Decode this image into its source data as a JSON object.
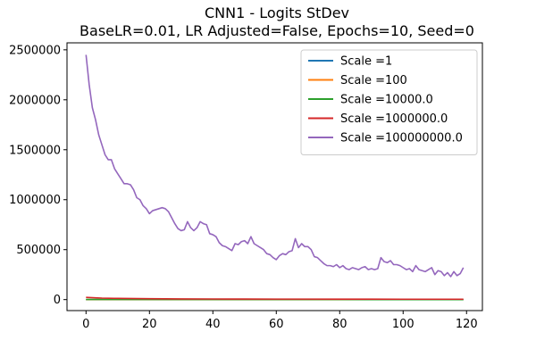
{
  "chart_data": {
    "type": "line",
    "title": "CNN1 - Logits StDev",
    "subtitle": "BaseLR=0.01, LR Adjusted=False, Epochs=10, Seed=0",
    "xlabel": "",
    "ylabel": "",
    "xlim": [
      -6,
      125
    ],
    "ylim": [
      -110000,
      2570000
    ],
    "xticks": [
      0,
      20,
      40,
      60,
      80,
      100,
      120
    ],
    "yticks": [
      0,
      500000,
      1000000,
      1500000,
      2000000,
      2500000
    ],
    "grid": false,
    "legend": "top-right",
    "series": [
      {
        "name": "Scale =1",
        "color": "#1f77b4",
        "x": [
          0,
          119
        ],
        "y": [
          0,
          0
        ]
      },
      {
        "name": "Scale =100",
        "color": "#ff7f0e",
        "x": [
          0,
          119
        ],
        "y": [
          10,
          10
        ]
      },
      {
        "name": "Scale =10000.0",
        "color": "#2ca02c",
        "x": [
          0,
          10,
          30,
          60,
          90,
          119
        ],
        "y": [
          1500,
          900,
          700,
          500,
          400,
          400
        ]
      },
      {
        "name": "Scale =1000000.0",
        "color": "#d62728",
        "x": [
          0,
          5,
          10,
          20,
          30,
          40,
          50,
          60,
          70,
          80,
          90,
          100,
          110,
          119
        ],
        "y": [
          22000,
          15000,
          12000,
          9000,
          7000,
          6000,
          5500,
          5000,
          5000,
          4500,
          4500,
          4000,
          4000,
          4000
        ]
      },
      {
        "name": "Scale =100000000.0",
        "color": "#9467bd",
        "x": [
          0,
          1,
          2,
          3,
          4,
          5,
          6,
          7,
          8,
          9,
          10,
          11,
          12,
          13,
          14,
          15,
          16,
          17,
          18,
          19,
          20,
          21,
          22,
          23,
          24,
          25,
          26,
          27,
          28,
          29,
          30,
          31,
          32,
          33,
          34,
          35,
          36,
          37,
          38,
          39,
          40,
          41,
          42,
          43,
          44,
          45,
          46,
          47,
          48,
          49,
          50,
          51,
          52,
          53,
          54,
          55,
          56,
          57,
          58,
          59,
          60,
          61,
          62,
          63,
          64,
          65,
          66,
          67,
          68,
          69,
          70,
          71,
          72,
          73,
          74,
          75,
          76,
          77,
          78,
          79,
          80,
          81,
          82,
          83,
          84,
          85,
          86,
          87,
          88,
          89,
          90,
          91,
          92,
          93,
          94,
          95,
          96,
          97,
          98,
          99,
          100,
          101,
          102,
          103,
          104,
          105,
          106,
          107,
          108,
          109,
          110,
          111,
          112,
          113,
          114,
          115,
          116,
          117,
          118,
          119
        ],
        "y": [
          2450000,
          2150000,
          1920000,
          1800000,
          1650000,
          1550000,
          1450000,
          1400000,
          1400000,
          1310000,
          1260000,
          1210000,
          1160000,
          1160000,
          1150000,
          1100000,
          1020000,
          1000000,
          940000,
          910000,
          860000,
          890000,
          900000,
          910000,
          920000,
          910000,
          880000,
          820000,
          760000,
          710000,
          690000,
          700000,
          780000,
          720000,
          690000,
          720000,
          780000,
          760000,
          750000,
          660000,
          650000,
          630000,
          570000,
          540000,
          530000,
          510000,
          490000,
          560000,
          550000,
          580000,
          590000,
          560000,
          630000,
          560000,
          540000,
          520000,
          500000,
          460000,
          450000,
          420000,
          400000,
          440000,
          460000,
          450000,
          480000,
          490000,
          610000,
          520000,
          560000,
          530000,
          530000,
          500000,
          430000,
          420000,
          390000,
          360000,
          340000,
          340000,
          330000,
          350000,
          320000,
          340000,
          310000,
          300000,
          320000,
          310000,
          300000,
          320000,
          330000,
          300000,
          310000,
          300000,
          310000,
          420000,
          380000,
          370000,
          390000,
          350000,
          350000,
          340000,
          320000,
          300000,
          310000,
          280000,
          340000,
          300000,
          290000,
          280000,
          300000,
          320000,
          250000,
          290000,
          280000,
          240000,
          270000,
          230000,
          280000,
          240000,
          260000,
          320000
        ]
      }
    ]
  }
}
